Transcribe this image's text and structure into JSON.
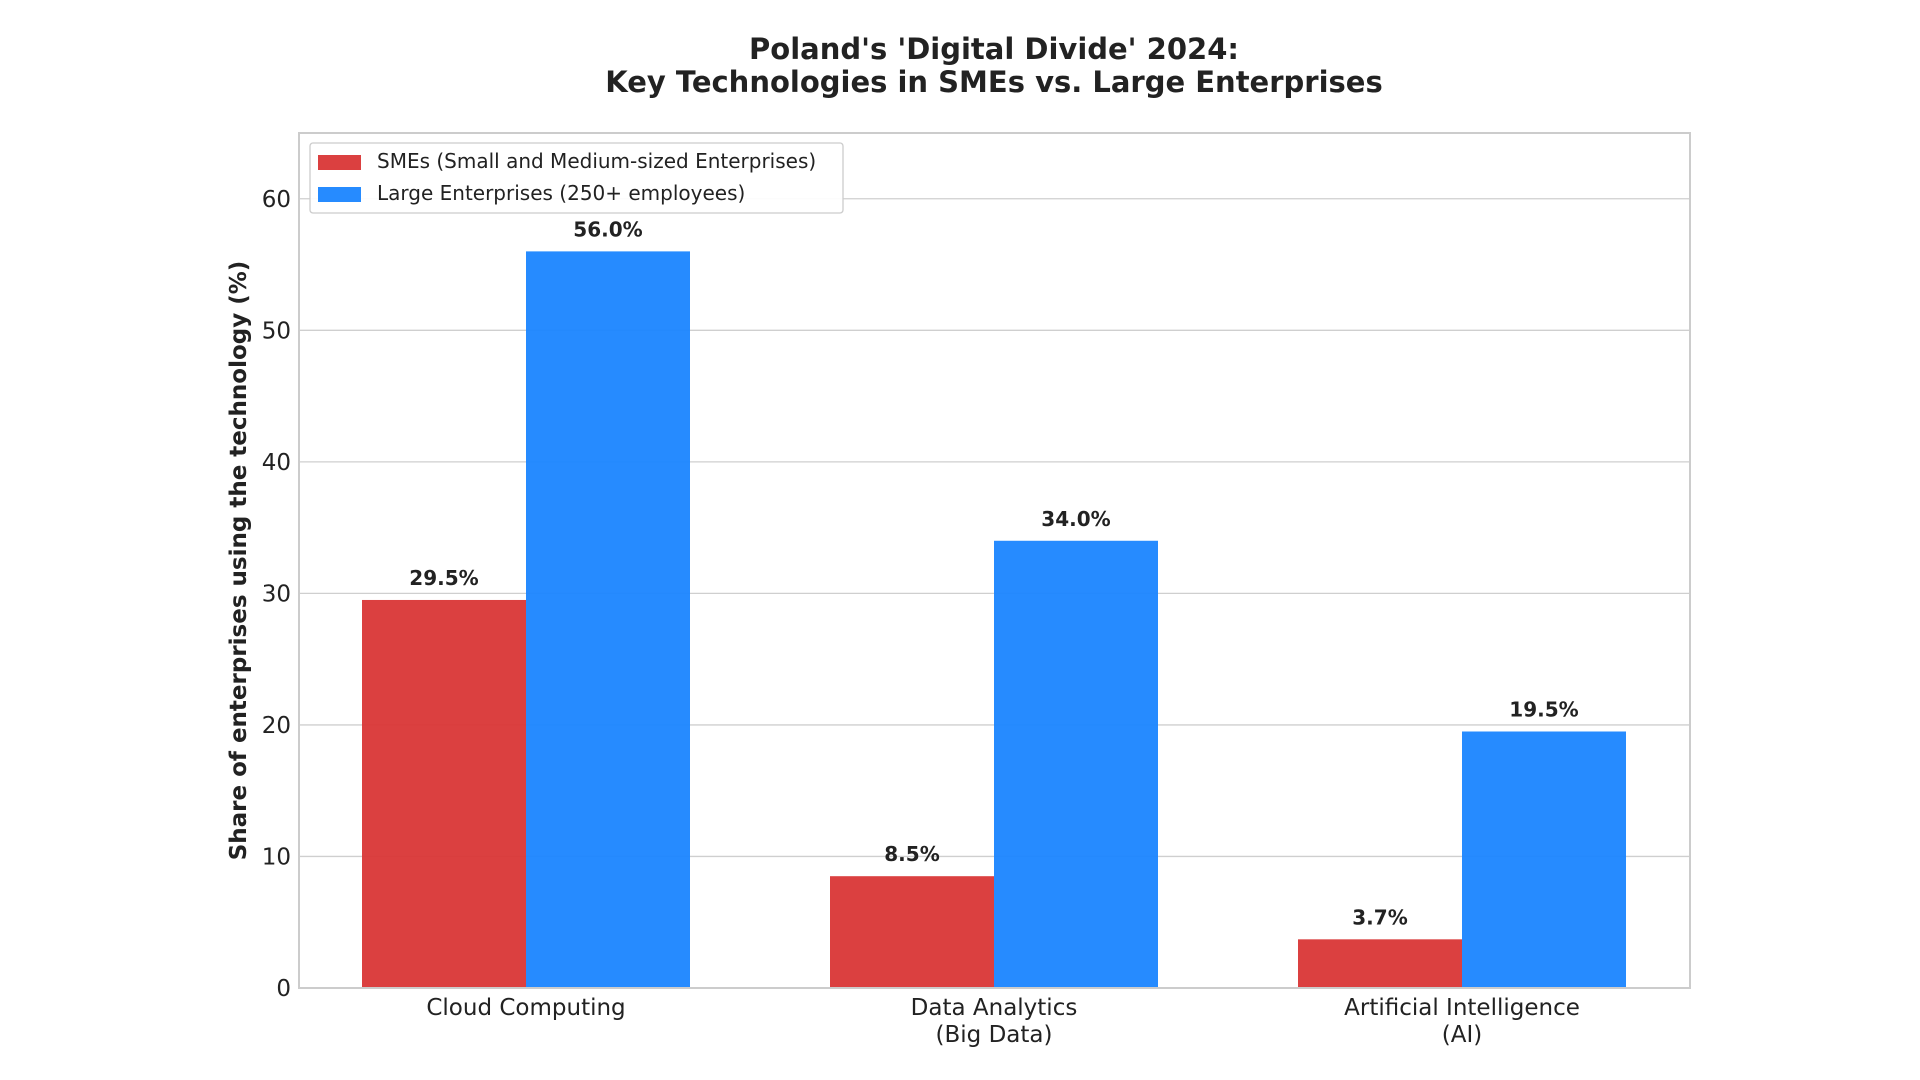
{
  "chart_data": {
    "type": "bar",
    "title": [
      "Poland's 'Digital Divide' 2024:",
      "Key Technologies in SMEs vs. Large Enterprises"
    ],
    "xlabel": "",
    "ylabel": "Share of enterprises using the technology (%)",
    "ylim": [
      0,
      65
    ],
    "yticks": [
      0,
      10,
      20,
      30,
      40,
      50,
      60
    ],
    "grid": true,
    "legend_position": "top-left",
    "categories": [
      [
        "Cloud Computing"
      ],
      [
        "Data Analytics",
        "(Big Data)"
      ],
      [
        "Artificial Intelligence",
        "(AI)"
      ]
    ],
    "series": [
      {
        "name": "SMEs (Small and Medium-sized Enterprises)",
        "color": "#d93636",
        "values": [
          29.5,
          8.5,
          3.7
        ],
        "labels": [
          "29.5%",
          "8.5%",
          "3.7%"
        ]
      },
      {
        "name": "Large Enterprises (250+ employees)",
        "color": "#1a85ff",
        "values": [
          56.0,
          34.0,
          19.5
        ],
        "labels": [
          "56.0%",
          "34.0%",
          "19.5%"
        ]
      }
    ]
  }
}
